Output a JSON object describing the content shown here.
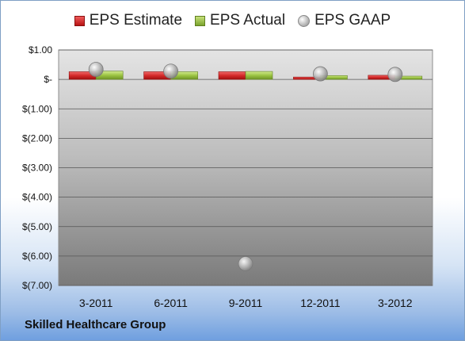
{
  "company": "Skilled Healthcare Group",
  "legend": {
    "estimate": "EPS Estimate",
    "actual": "EPS Actual",
    "gaap": "EPS GAAP"
  },
  "colors": {
    "estimate": "#d42a2a",
    "actual": "#9bc442",
    "gaap": "#b0b0b0"
  },
  "chart_data": {
    "type": "bar",
    "categories": [
      "3-2011",
      "6-2011",
      "9-2011",
      "12-2011",
      "3-2012"
    ],
    "series": [
      {
        "name": "EPS Estimate",
        "values": [
          0.26,
          0.26,
          0.26,
          0.08,
          0.14
        ]
      },
      {
        "name": "EPS Actual",
        "values": [
          0.28,
          0.26,
          0.27,
          0.13,
          0.11
        ]
      },
      {
        "name": "EPS GAAP",
        "kind": "scatter",
        "values": [
          0.34,
          0.28,
          -6.26,
          0.19,
          0.17
        ]
      }
    ],
    "ylim": [
      -7.0,
      1.0
    ],
    "yticks": [
      1.0,
      0.0,
      -1.0,
      -2.0,
      -3.0,
      -4.0,
      -5.0,
      -6.0,
      -7.0
    ],
    "ytick_labels": [
      "$1.00",
      "$-",
      "$(1.00)",
      "$(2.00)",
      "$(3.00)",
      "$(4.00)",
      "$(5.00)",
      "$(6.00)",
      "$(7.00)"
    ],
    "grid": true,
    "legend_position": "top"
  }
}
